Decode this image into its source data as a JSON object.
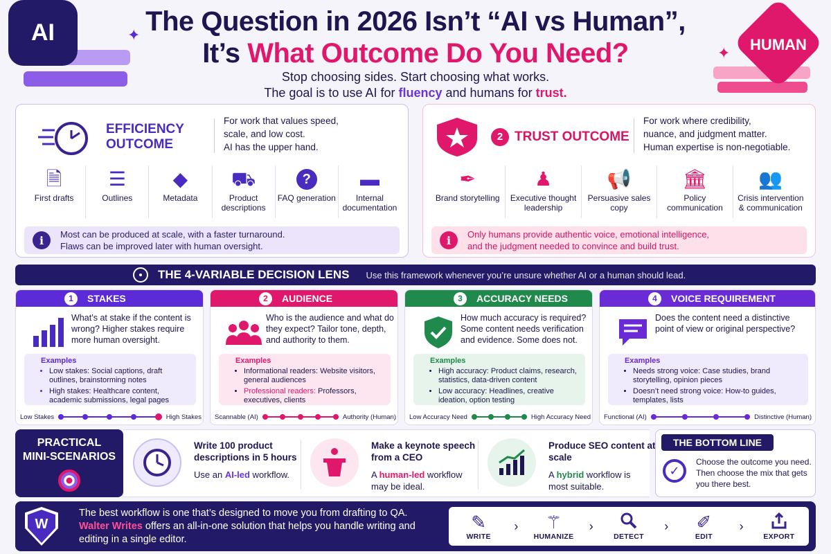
{
  "header": {
    "ai_badge": "AI",
    "human_badge": "HUMAN",
    "title_line1": "The Question in 2026 Isn’t “AI vs Human”,",
    "title_line2_prefix": "It’s ",
    "title_line2_highlight": "What Outcome Do You Need?",
    "subtitle_line1": "Stop choosing sides. Start choosing what works.",
    "subtitle_line2_prefix": "The goal is to use AI for ",
    "subtitle_fluency": "fluency",
    "subtitle_middle": " and humans for ",
    "subtitle_trust": "trust."
  },
  "efficiency": {
    "title_line1": "EFFICIENCY",
    "title_line2": "OUTCOME",
    "desc_line1": "For work that values speed,",
    "desc_line2": "scale, and low cost.",
    "desc_line3": "AI has the upper hand.",
    "items": [
      {
        "label": "First drafts",
        "icon": "document-icon"
      },
      {
        "label": "Outlines",
        "icon": "list-icon"
      },
      {
        "label": "Metadata",
        "icon": "tag-icon"
      },
      {
        "label": "Product descriptions",
        "icon": "cart-icon"
      },
      {
        "label": "FAQ generation",
        "icon": "question-icon"
      },
      {
        "label": "Internal documentation",
        "icon": "folder-icon"
      }
    ],
    "note_line1": "Most can be produced at scale, with a faster turnaround.",
    "note_line2": "Flaws can be improved later with human oversight."
  },
  "trust": {
    "number": "2",
    "title": "TRUST OUTCOME",
    "desc_line1": "For work where credibility,",
    "desc_line2": "nuance, and judgment matter.",
    "desc_line3": "Human expertise is non-negotiable.",
    "items": [
      {
        "label": "Brand storytelling",
        "icon": "pen-icon"
      },
      {
        "label": "Executive thought leadership",
        "icon": "speaker-icon"
      },
      {
        "label": "Persuasive sales copy",
        "icon": "megaphone-icon"
      },
      {
        "label": "Policy communication",
        "icon": "building-icon"
      },
      {
        "label": "Crisis intervention & communication",
        "icon": "people-icon"
      }
    ],
    "note_line1": "Only humans provide authentic voice, emotional intelligence,",
    "note_line2": "and the judgment needed to convince and build trust."
  },
  "lens": {
    "title": "THE 4-VARIABLE DECISION LENS",
    "subtitle": "Use this framework whenever you’re unsure whether AI or a human should lead."
  },
  "cards": [
    {
      "num": "1",
      "title": "STAKES",
      "question": "What’s at stake if the content is wrong? Higher stakes require more human oversight.",
      "examples_title": "Examples",
      "ex1_label": "Low stakes: ",
      "ex1_text": "Social captions, draft outlines, brainstorming notes",
      "ex2_label": "High stakes: ",
      "ex2_text": "Healthcare content, academic submissions, legal pages",
      "scale_left": "Low Stakes",
      "scale_right": "High Stakes"
    },
    {
      "num": "2",
      "title": "AUDIENCE",
      "question": "Who is the audience and what do they expect? Tailor tone, depth, and authority to them.",
      "examples_title": "Examples",
      "ex1_label": "Informational readers: ",
      "ex1_text": "Website visitors, general audiences",
      "ex2_label": "Professional readers: ",
      "ex2_text": "Professors, executives, clients",
      "scale_left": "Scannable (AI)",
      "scale_right": "Authority (Human)"
    },
    {
      "num": "3",
      "title": "ACCURACY NEEDS",
      "question": "How much accuracy is required? Some content needs verification and evidence. Some does not.",
      "examples_title": "Examples",
      "ex1_label": "High accuracy: ",
      "ex1_text": "Product claims, research, statistics, data-driven content",
      "ex2_label": "Low accuracy: ",
      "ex2_text": "Headlines, creative ideation, option testing",
      "scale_left": "Low Accuracy Need",
      "scale_right": "High Accuracy Need"
    },
    {
      "num": "4",
      "title": "VOICE REQUIREMENT",
      "question": "Does the content need a distinctive point of view or original perspective?",
      "examples_title": "Examples",
      "ex1_label": "Needs strong voice: ",
      "ex1_text": "Case studies, brand storytelling, opinion pieces",
      "ex2_label": "Doesn’t need strong voice: ",
      "ex2_text": "How-to guides, templates, lists",
      "scale_left": "Functional (AI)",
      "scale_right": "Distinctive (Human)"
    }
  ],
  "scenarios": {
    "label_line1": "PRACTICAL",
    "label_line2": "MINI-SCENARIOS",
    "items": [
      {
        "title": "Write 100 product descriptions in 5 hours",
        "pre": "Use an ",
        "hl": "AI-led",
        "post": " workflow."
      },
      {
        "title": "Make a keynote speech from a CEO",
        "pre": "A ",
        "hl": "human-led",
        "post": " workflow may be ideal."
      },
      {
        "title": "Produce SEO content at scale",
        "pre": "A ",
        "hl": "hybrid",
        "post": " workflow is most suitable."
      }
    ]
  },
  "bottom_line": {
    "title": "THE BOTTOM LINE",
    "text": "Choose the outcome you need. Then choose the mix that gets you there best."
  },
  "footer": {
    "logo": "W",
    "line1": "The best workflow is one that’s designed to move you from drafting to QA.",
    "brand": "Walter Writes",
    "line2_rest": " offers an all-in-one solution that helps you handle writing and editing in a single editor.",
    "workflow": [
      {
        "label": "WRITE",
        "icon": "pencil-icon"
      },
      {
        "label": "HUMANIZE",
        "icon": "magic-wand-icon"
      },
      {
        "label": "DETECT",
        "icon": "magnifier-icon"
      },
      {
        "label": "EDIT",
        "icon": "edit-icon"
      },
      {
        "label": "EXPORT",
        "icon": "export-icon"
      }
    ]
  },
  "colors": {
    "navy": "#231a67",
    "purple": "#5a2bd6",
    "pink": "#e0186c",
    "green": "#1f8a4c"
  }
}
